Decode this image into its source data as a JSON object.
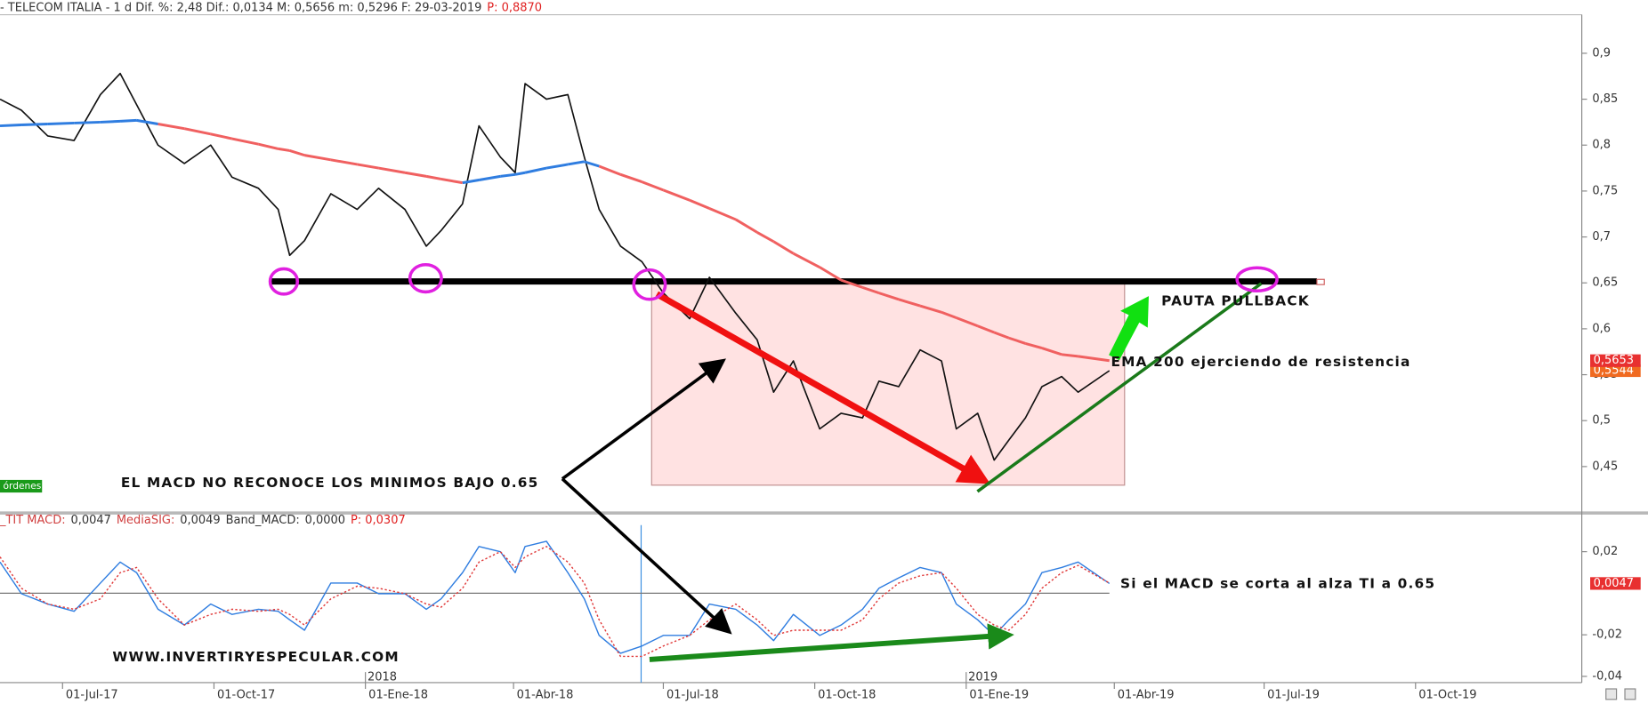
{
  "chart_data": {
    "type": "line",
    "header": [
      {
        "text": "- TELECOM ITALIA -  1 d Dif. %: 2,48 Dif.: 0,0134 M: 0,5656 m: 0,5296 F: 29-03-2019",
        "color": "#333333"
      },
      {
        "text": "P: 0,8870",
        "color": "#e02020"
      }
    ],
    "macd_header": [
      {
        "text": "_TIT MACD:",
        "color": "#d04040"
      },
      {
        "text": "0,0047",
        "color": "#333333"
      },
      {
        "text": "MediaSIG:",
        "color": "#d04040"
      },
      {
        "text": "0,0049",
        "color": "#333333"
      },
      {
        "text": "Band_MACD:",
        "color": "#333333"
      },
      {
        "text": "0,0000",
        "color": "#333333"
      },
      {
        "text": "P: 0,0307",
        "color": "#e02020"
      }
    ],
    "badge": "órdenes",
    "annotations": [
      {
        "text": "EL MACD NO RECONOCE LOS MINIMOS BAJO 0.65"
      },
      {
        "text": "PAUTA PULLBACK"
      },
      {
        "text": "EMA 200 ejerciendo de resistencia"
      },
      {
        "text": "Si el MACD se corta al alza TI a 0.65"
      },
      {
        "text": "WWW.INVERTIRYESPECULAR.COM"
      }
    ],
    "x": [
      "2017-05-24",
      "2017-06-06",
      "2017-06-22",
      "2017-07-08",
      "2017-07-24",
      "2017-08-05",
      "2017-08-15",
      "2017-08-28",
      "2017-09-13",
      "2017-09-29",
      "2017-10-12",
      "2017-10-28",
      "2017-11-09",
      "2017-11-16",
      "2017-11-25",
      "2017-12-11",
      "2017-12-27",
      "2018-01-09",
      "2018-01-25",
      "2018-02-07",
      "2018-02-16",
      "2018-03-01",
      "2018-03-11",
      "2018-03-24",
      "2018-04-02",
      "2018-04-08",
      "2018-04-21",
      "2018-05-04",
      "2018-05-14",
      "2018-05-23",
      "2018-06-05",
      "2018-06-18",
      "2018-07-01",
      "2018-07-17",
      "2018-07-29",
      "2018-08-14",
      "2018-08-27",
      "2018-09-06",
      "2018-09-18",
      "2018-10-04",
      "2018-10-17",
      "2018-10-30",
      "2018-11-09",
      "2018-11-21",
      "2018-12-04",
      "2018-12-17",
      "2018-12-26",
      "2019-01-08",
      "2019-01-18",
      "2019-01-27",
      "2019-02-06",
      "2019-02-16",
      "2019-02-28",
      "2019-03-10",
      "2019-03-29"
    ],
    "xlim": [
      "2017-05-24",
      "2020-01-10"
    ],
    "xticks": [
      {
        "value": "2017-07-01",
        "label": "01-Jul-17"
      },
      {
        "value": "2017-10-01",
        "label": "01-Oct-17"
      },
      {
        "value": "2018-01-01",
        "label": "01-Ene-18"
      },
      {
        "value": "2018-04-01",
        "label": "01-Abr-18"
      },
      {
        "value": "2018-07-01",
        "label": "01-Jul-18"
      },
      {
        "value": "2018-10-01",
        "label": "01-Oct-18"
      },
      {
        "value": "2019-01-01",
        "label": "01-Ene-19"
      },
      {
        "value": "2019-04-01",
        "label": "01-Abr-19"
      },
      {
        "value": "2019-07-01",
        "label": "01-Jul-19"
      },
      {
        "value": "2019-10-01",
        "label": "01-Oct-19"
      }
    ],
    "year_labels": [
      {
        "value": "2018-01-01",
        "label": "2018"
      },
      {
        "value": "2019-01-01",
        "label": "2019"
      }
    ],
    "grid": false,
    "panels": [
      {
        "ylim": [
          0.4,
          0.942
        ],
        "yticks": [
          {
            "value": 0.45,
            "label": "0,45"
          },
          {
            "value": 0.5,
            "label": "0,5"
          },
          {
            "value": 0.55,
            "label": "0,55"
          },
          {
            "value": 0.6,
            "label": "0,6"
          },
          {
            "value": 0.65,
            "label": "0,65"
          },
          {
            "value": 0.7,
            "label": "0,7"
          },
          {
            "value": 0.75,
            "label": "0,75"
          },
          {
            "value": 0.8,
            "label": "0,8"
          },
          {
            "value": 0.85,
            "label": "0,85"
          },
          {
            "value": 0.9,
            "label": "0,9"
          }
        ],
        "series": [
          {
            "color": "#111111",
            "width": 1.4,
            "last_label": "0,5544",
            "last_color": "#f06a20",
            "values": [
              0.85,
              0.838,
              0.81,
              0.805,
              0.855,
              0.878,
              0.844,
              0.8,
              0.78,
              0.8,
              0.765,
              0.753,
              0.73,
              0.68,
              0.696,
              0.747,
              0.73,
              0.753,
              0.73,
              0.69,
              0.707,
              0.736,
              0.821,
              0.787,
              0.77,
              0.867,
              0.85,
              0.855,
              0.787,
              0.73,
              0.69,
              0.673,
              0.639,
              0.611,
              0.656,
              0.617,
              0.588,
              0.531,
              0.565,
              0.491,
              0.508,
              0.503,
              0.543,
              0.537,
              0.577,
              0.565,
              0.491,
              0.508,
              0.457,
              0.479,
              0.503,
              0.537,
              0.548,
              0.531,
              0.5544
            ]
          },
          {
            "color": "#f06060",
            "width": 2.5,
            "last_label": "0,5653",
            "last_color": "#e83030",
            "values": [
              0.821,
              0.822,
              0.823,
              0.824,
              0.825,
              0.826,
              0.827,
              0.823,
              0.818,
              0.812,
              0.807,
              0.801,
              0.796,
              0.794,
              0.789,
              0.784,
              0.779,
              0.775,
              0.77,
              0.766,
              0.763,
              0.759,
              0.762,
              0.766,
              0.768,
              0.77,
              0.775,
              0.779,
              0.782,
              0.777,
              0.768,
              0.76,
              0.751,
              0.74,
              0.731,
              0.719,
              0.705,
              0.695,
              0.682,
              0.667,
              0.653,
              0.645,
              0.639,
              0.632,
              0.625,
              0.618,
              0.612,
              0.603,
              0.596,
              0.59,
              0.584,
              0.579,
              0.572,
              0.57,
              0.5653
            ],
            "colors": [
              "#2f7de0",
              "#2f7de0",
              "#2f7de0",
              "#2f7de0",
              "#2f7de0",
              "#2f7de0",
              "#2f7de0",
              "#f06060",
              "#f06060",
              "#f06060",
              "#f06060",
              "#f06060",
              "#f06060",
              "#f06060",
              "#f06060",
              "#f06060",
              "#f06060",
              "#f06060",
              "#f06060",
              "#f06060",
              "#f06060",
              "#2f7de0",
              "#2f7de0",
              "#2f7de0",
              "#2f7de0",
              "#2f7de0",
              "#2f7de0",
              "#2f7de0",
              "#2f7de0",
              "#f06060",
              "#f06060",
              "#f06060",
              "#f06060",
              "#f06060",
              "#f06060",
              "#f06060",
              "#f06060",
              "#f06060",
              "#f06060",
              "#f06060",
              "#f06060",
              "#f06060",
              "#f06060",
              "#f06060",
              "#f06060",
              "#f06060",
              "#f06060",
              "#f06060",
              "#f06060",
              "#f06060",
              "#f06060",
              "#f06060",
              "#f06060",
              "#f06060",
              "#f06060"
            ]
          }
        ]
      },
      {
        "ylim": [
          -0.043,
          0.0328
        ],
        "yticks": [
          {
            "value": -0.04,
            "label": "-0,04"
          },
          {
            "value": -0.02,
            "label": "-0,02"
          },
          {
            "value": 0.02,
            "label": "0,02"
          }
        ],
        "zero_line": true,
        "series": [
          {
            "color": "#2f7de0",
            "width": 1.2,
            "last_label": "0,0047",
            "last_color": "#e83030",
            "values": [
              0.015,
              -0.0002,
              -0.0052,
              -0.0087,
              0.0049,
              0.015,
              0.0099,
              -0.0077,
              -0.0153,
              -0.0052,
              -0.0102,
              -0.0077,
              -0.0087,
              -0.0128,
              -0.0178,
              0.0049,
              0.0049,
              -0.0002,
              -0.0002,
              -0.0077,
              -0.0027,
              0.0099,
              0.0225,
              0.02,
              0.0099,
              0.0225,
              0.025,
              0.0099,
              -0.0027,
              -0.0203,
              -0.0289,
              -0.0254,
              -0.0203,
              -0.0203,
              -0.0052,
              -0.0077,
              -0.0153,
              -0.0228,
              -0.0102,
              -0.0203,
              -0.0153,
              -0.0077,
              0.0024,
              0.0074,
              0.0124,
              0.0099,
              -0.0052,
              -0.0128,
              -0.0203,
              -0.0128,
              -0.0052,
              0.0099,
              0.0124,
              0.015,
              0.0047
            ]
          },
          {
            "color": "#e03838",
            "width": 1.2,
            "dashed": true,
            "values": [
              0.0175,
              0.0024,
              -0.0052,
              -0.0077,
              -0.0027,
              0.0099,
              0.0124,
              -0.0027,
              -0.0153,
              -0.0102,
              -0.0077,
              -0.0087,
              -0.0077,
              -0.0102,
              -0.0153,
              -0.0027,
              0.0034,
              0.0024,
              -0.0002,
              -0.0052,
              -0.0067,
              0.0024,
              0.015,
              0.02,
              0.0124,
              0.0175,
              0.0225,
              0.015,
              0.0049,
              -0.0128,
              -0.0304,
              -0.0304,
              -0.0254,
              -0.0203,
              -0.0128,
              -0.0052,
              -0.0128,
              -0.0203,
              -0.0178,
              -0.0178,
              -0.0178,
              -0.0128,
              -0.0027,
              0.0049,
              0.0084,
              0.0099,
              0.0024,
              -0.0102,
              -0.0153,
              -0.0178,
              -0.0102,
              0.0024,
              0.0099,
              0.0134,
              0.0049
            ]
          }
        ]
      }
    ]
  }
}
